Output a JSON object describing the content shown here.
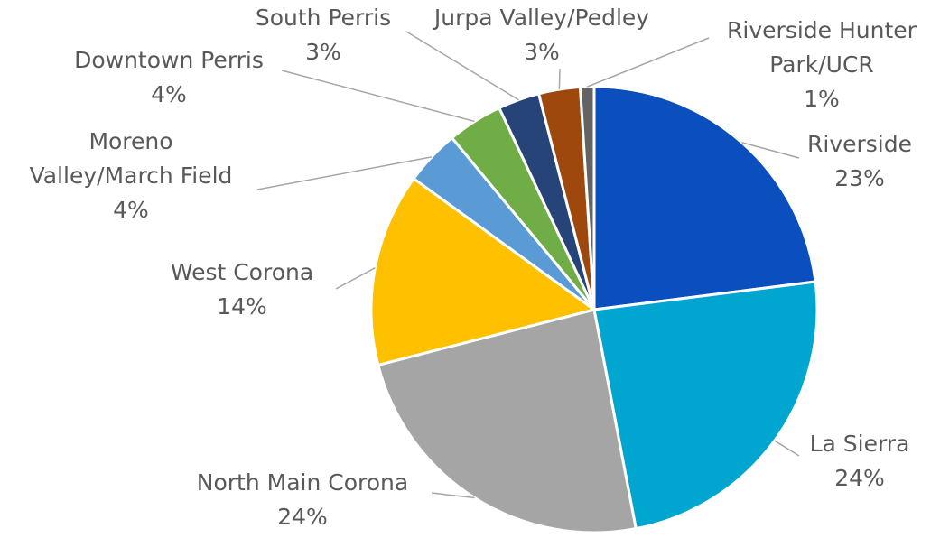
{
  "chart_data": {
    "type": "pie",
    "categories": [
      "Riverside",
      "La Sierra",
      "North Main Corona",
      "West Corona",
      "Moreno Valley/March Field",
      "Downtown Perris",
      "South Perris",
      "Jurpa Valley/Pedley",
      "Riverside Hunter Park/UCR"
    ],
    "values": [
      23,
      24,
      24,
      14,
      4,
      4,
      3,
      3,
      1
    ],
    "value_labels": [
      "23%",
      "24%",
      "24%",
      "14%",
      "4%",
      "4%",
      "3%",
      "3%",
      "1%"
    ],
    "colors": [
      "#0a4fbd",
      "#00a6cf",
      "#a5a5a5",
      "#ffc000",
      "#5b9bd5",
      "#70ad47",
      "#264478",
      "#9e480e",
      "#636363"
    ]
  }
}
